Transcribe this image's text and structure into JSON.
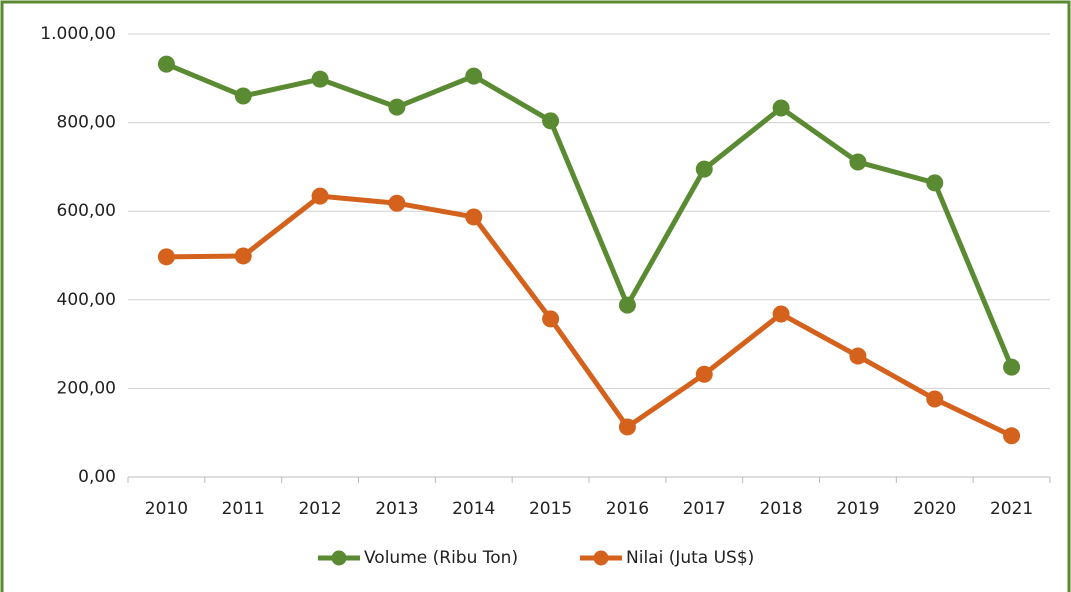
{
  "chart_data": {
    "type": "line",
    "categories": [
      "2010",
      "2011",
      "2012",
      "2013",
      "2014",
      "2015",
      "2016",
      "2017",
      "2018",
      "2019",
      "2020",
      "2021"
    ],
    "series": [
      {
        "name": "Volume (Ribu Ton)",
        "color": "#5a8a32",
        "values": [
          932,
          860,
          898,
          835,
          905,
          804,
          388,
          695,
          833,
          711,
          664,
          248
        ]
      },
      {
        "name": "Nilai (Juta US$)",
        "color": "#d4621c",
        "values": [
          497,
          499,
          634,
          618,
          587,
          357,
          113,
          232,
          368,
          273,
          176,
          93
        ]
      }
    ],
    "ylim": [
      0,
      1000
    ],
    "yticks": [
      {
        "value": 0,
        "label": "0,00"
      },
      {
        "value": 200,
        "label": "200,00"
      },
      {
        "value": 400,
        "label": "400,00"
      },
      {
        "value": 600,
        "label": "600,00"
      },
      {
        "value": 800,
        "label": "800,00"
      },
      {
        "value": 1000,
        "label": "1.000,00"
      }
    ],
    "grid": true,
    "legend": "bottom"
  }
}
